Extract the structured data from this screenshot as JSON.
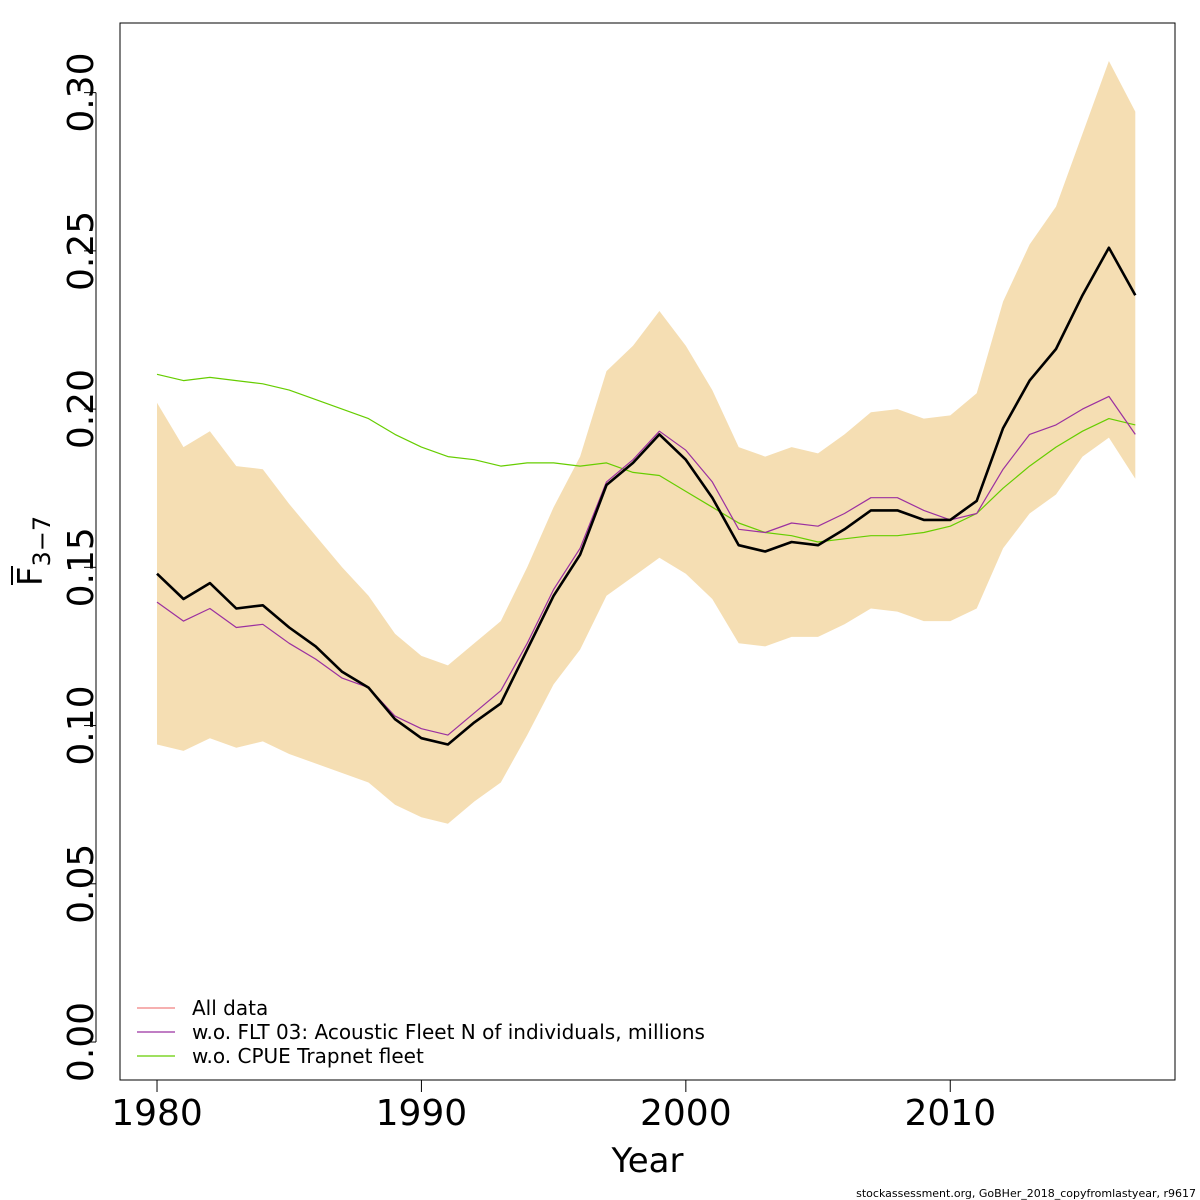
{
  "chart_data": {
    "type": "line",
    "xlabel": "Year",
    "ylabel": {
      "main": "F",
      "subscript": "3−7"
    },
    "xlim": [
      1978.6,
      2018.5
    ],
    "ylim": [
      -0.012,
      0.322
    ],
    "xticks": [
      1980,
      1990,
      2000,
      2010
    ],
    "xtick_labels": [
      "1980",
      "1990",
      "2000",
      "2010"
    ],
    "yticks": [
      0.0,
      0.05,
      0.1,
      0.15,
      0.2,
      0.25,
      0.3
    ],
    "ytick_labels": [
      "0.00",
      "0.05",
      "0.10",
      "0.15",
      "0.20",
      "0.25",
      "0.30"
    ],
    "grid": false,
    "legend_position": "bottom-left",
    "x": [
      1980,
      1981,
      1982,
      1983,
      1984,
      1985,
      1986,
      1987,
      1988,
      1989,
      1990,
      1991,
      1992,
      1993,
      1994,
      1995,
      1996,
      1997,
      1998,
      1999,
      2000,
      2001,
      2002,
      2003,
      2004,
      2005,
      2006,
      2007,
      2008,
      2009,
      2010,
      2011,
      2012,
      2013,
      2014,
      2015,
      2016,
      2017
    ],
    "confidence_band": {
      "color": "#f5deb3",
      "upper": [
        0.202,
        0.188,
        0.193,
        0.182,
        0.181,
        0.17,
        0.16,
        0.15,
        0.141,
        0.129,
        0.122,
        0.119,
        0.126,
        0.133,
        0.15,
        0.169,
        0.185,
        0.212,
        0.22,
        0.231,
        0.22,
        0.206,
        0.188,
        0.185,
        0.188,
        0.186,
        0.192,
        0.199,
        0.2,
        0.197,
        0.198,
        0.205,
        0.234,
        0.252,
        0.264,
        0.287,
        0.31,
        0.294
      ],
      "lower": [
        0.094,
        0.092,
        0.096,
        0.093,
        0.095,
        0.091,
        0.088,
        0.085,
        0.082,
        0.075,
        0.071,
        0.069,
        0.076,
        0.082,
        0.097,
        0.113,
        0.124,
        0.141,
        0.147,
        0.153,
        0.148,
        0.14,
        0.126,
        0.125,
        0.128,
        0.128,
        0.132,
        0.137,
        0.136,
        0.133,
        0.133,
        0.137,
        0.156,
        0.167,
        0.173,
        0.185,
        0.191,
        0.178
      ]
    },
    "series": [
      {
        "name": "All data",
        "color": "#000000",
        "legend_color": "#f08080",
        "width": 2.6,
        "values": [
          0.148,
          0.14,
          0.145,
          0.137,
          0.138,
          0.131,
          0.125,
          0.117,
          0.112,
          0.102,
          0.096,
          0.094,
          0.101,
          0.107,
          0.124,
          0.141,
          0.154,
          0.176,
          0.183,
          0.192,
          0.184,
          0.172,
          0.157,
          0.155,
          0.158,
          0.157,
          0.162,
          0.168,
          0.168,
          0.165,
          0.165,
          0.171,
          0.194,
          0.209,
          0.219,
          0.236,
          0.251,
          0.236
        ]
      },
      {
        "name": "w.o. FLT 03: Acoustic Fleet   N of individuals, millions",
        "color": "#9b30a0",
        "width": 1.2,
        "values": [
          0.139,
          0.133,
          0.137,
          0.131,
          0.132,
          0.126,
          0.121,
          0.115,
          0.112,
          0.103,
          0.099,
          0.097,
          0.104,
          0.111,
          0.126,
          0.143,
          0.156,
          0.177,
          0.184,
          0.193,
          0.187,
          0.177,
          0.162,
          0.161,
          0.164,
          0.163,
          0.167,
          0.172,
          0.172,
          0.168,
          0.165,
          0.167,
          0.181,
          0.192,
          0.195,
          0.2,
          0.204,
          0.192
        ]
      },
      {
        "name": "w.o. CPUE Trapnet fleet",
        "color": "#66cd00",
        "width": 1.2,
        "values": [
          0.211,
          0.209,
          0.21,
          0.209,
          0.208,
          0.206,
          0.203,
          0.2,
          0.197,
          0.192,
          0.188,
          0.185,
          0.184,
          0.182,
          0.183,
          0.183,
          0.182,
          0.183,
          0.18,
          0.179,
          0.174,
          0.169,
          0.164,
          0.161,
          0.16,
          0.158,
          0.159,
          0.16,
          0.16,
          0.161,
          0.163,
          0.167,
          0.175,
          0.182,
          0.188,
          0.193,
          0.197,
          0.195
        ]
      }
    ]
  },
  "footer": "stockassessment.org, GoBHer_2018_copyfromlastyear, r9617"
}
